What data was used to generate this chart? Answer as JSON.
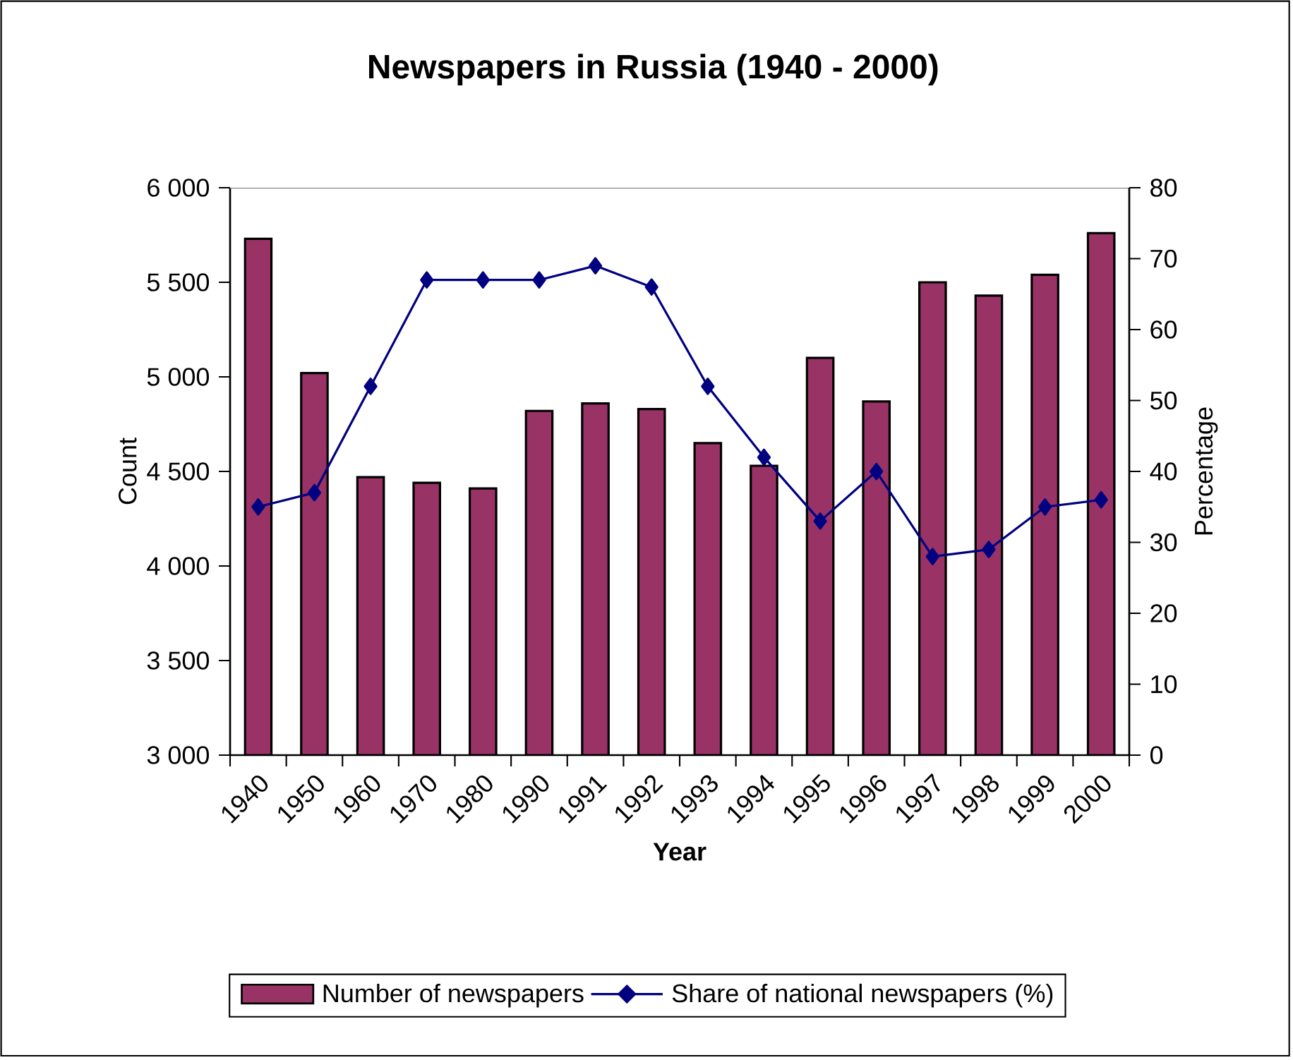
{
  "chart_data": {
    "type": "bar",
    "title": "Newspapers in Russia (1940 - 2000)",
    "xlabel": "Year",
    "ylabel": "Count",
    "y2label": "Percentage",
    "categories": [
      "1940",
      "1950",
      "1960",
      "1970",
      "1980",
      "1990",
      "1991",
      "1992",
      "1993",
      "1994",
      "1995",
      "1996",
      "1997",
      "1998",
      "1999",
      "2000"
    ],
    "series": [
      {
        "name": "Number of newspapers",
        "color": "#993366",
        "values": [
          5730,
          5020,
          4470,
          4440,
          4410,
          4820,
          4860,
          4830,
          4650,
          4530,
          5100,
          4870,
          5500,
          5430,
          5540,
          5760
        ]
      },
      {
        "name": "Share of national newspapers (%)",
        "type": "line",
        "axis": "y2",
        "color": "#000080",
        "values": [
          35,
          37,
          52,
          67,
          67,
          67,
          69,
          66,
          52,
          42,
          33,
          40,
          28,
          29,
          35,
          36
        ]
      }
    ],
    "ylim": [
      3000,
      6000
    ],
    "yticks": [
      {
        "value": 3000,
        "label": "3 000"
      },
      {
        "value": 3500,
        "label": "3 500"
      },
      {
        "value": 4000,
        "label": "4 000"
      },
      {
        "value": 4500,
        "label": "4 500"
      },
      {
        "value": 5000,
        "label": "5 000"
      },
      {
        "value": 5500,
        "label": "5 500"
      },
      {
        "value": 6000,
        "label": "6 000"
      }
    ],
    "y2lim": [
      0,
      80
    ],
    "y2ticks": [
      0,
      10,
      20,
      30,
      40,
      50,
      60,
      70,
      80
    ],
    "marker": "diamond",
    "legend": "bottom",
    "grid": false
  }
}
